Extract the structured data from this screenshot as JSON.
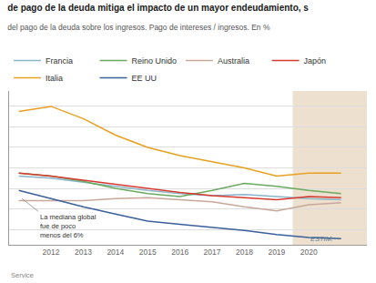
{
  "chart_data": {
    "type": "line",
    "title": "de pago de la deuda mitiga el impacto de un mayor endeudamiento, s",
    "subtitle": "del pago de la deuda sobre los ingresos. Pago de intereses / ingresos. En %",
    "x": [
      2011,
      2012,
      2013,
      2014,
      2015,
      2016,
      2017,
      2018,
      2019,
      2020,
      2021
    ],
    "series": [
      {
        "name": "Francia",
        "color": "#8ab4c8",
        "values": [
          9.2,
          9.0,
          8.6,
          8.2,
          7.8,
          7.5,
          7.3,
          7.4,
          7.2,
          7.0,
          6.9
        ]
      },
      {
        "name": "Reino Unido",
        "color": "#6aaa5e",
        "values": [
          9.5,
          9.2,
          8.7,
          8.0,
          7.5,
          7.2,
          7.8,
          8.5,
          8.2,
          7.8,
          7.5
        ]
      },
      {
        "name": "Australia",
        "color": "#c8a89a",
        "values": [
          6.8,
          6.8,
          6.8,
          7.0,
          7.1,
          6.9,
          6.7,
          6.2,
          5.8,
          6.4,
          6.6
        ]
      },
      {
        "name": "Japón",
        "color": "#d63a2f",
        "values": [
          9.5,
          9.2,
          8.8,
          8.4,
          8.0,
          7.6,
          7.3,
          7.1,
          6.9,
          7.2,
          7.1
        ]
      },
      {
        "name": "Italia",
        "color": "#e8a020",
        "values": [
          15.5,
          16.0,
          14.8,
          13.2,
          12.0,
          11.2,
          10.6,
          10.0,
          9.2,
          9.5,
          9.5
        ]
      },
      {
        "name": "EE UU",
        "color": "#3a5f9a",
        "values": [
          7.8,
          7.0,
          6.2,
          5.5,
          4.8,
          4.5,
          4.2,
          3.9,
          3.5,
          3.2,
          3.1
        ]
      }
    ],
    "xlim": [
      2010.7,
      2021.8
    ],
    "xticks": [
      2012,
      2013,
      2014,
      2015,
      2016,
      2017,
      2018,
      2019,
      2020
    ],
    "ylim": [
      2.5,
      17.5
    ],
    "yticks": [
      4,
      6,
      8,
      10,
      12,
      14,
      16
    ],
    "grid": true,
    "tick_labels": "x",
    "legend": "top",
    "annotations": [
      {
        "text": "La mediana global\nfue de poco\nmenos del 6%",
        "x": 2011.1,
        "y": 7.0
      }
    ],
    "estimate": {
      "x": 2020,
      "label": "ESTIM.",
      "color": "#ede0ce"
    },
    "source": "Service"
  }
}
